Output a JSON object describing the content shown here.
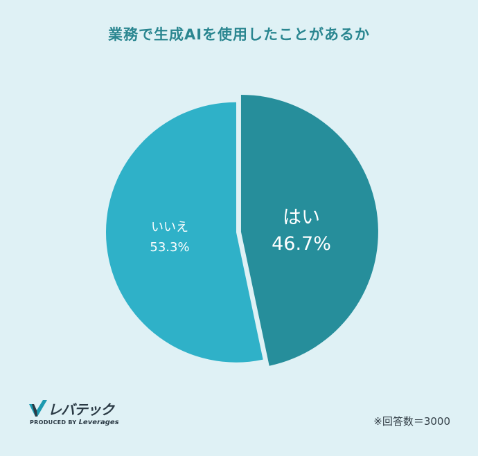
{
  "chart_data": {
    "type": "pie",
    "title": "業務で生成AIを使用したことがあるか",
    "slices": [
      {
        "label": "はい",
        "value": 46.7,
        "value_label": "46.7%",
        "color": "#268e9b",
        "exploded": true
      },
      {
        "label": "いいえ",
        "value": 53.3,
        "value_label": "53.3%",
        "color": "#2fb1c8",
        "exploded": false
      }
    ],
    "start": "12 o'clock",
    "direction": "clockwise"
  },
  "logo": {
    "name": "レバテック",
    "sub_prefix": "PRODUCED BY ",
    "sub_brand": "Leverages"
  },
  "note": "※回答数＝3000",
  "colors": {
    "background": "#dff1f5",
    "title": "#2a8690"
  }
}
